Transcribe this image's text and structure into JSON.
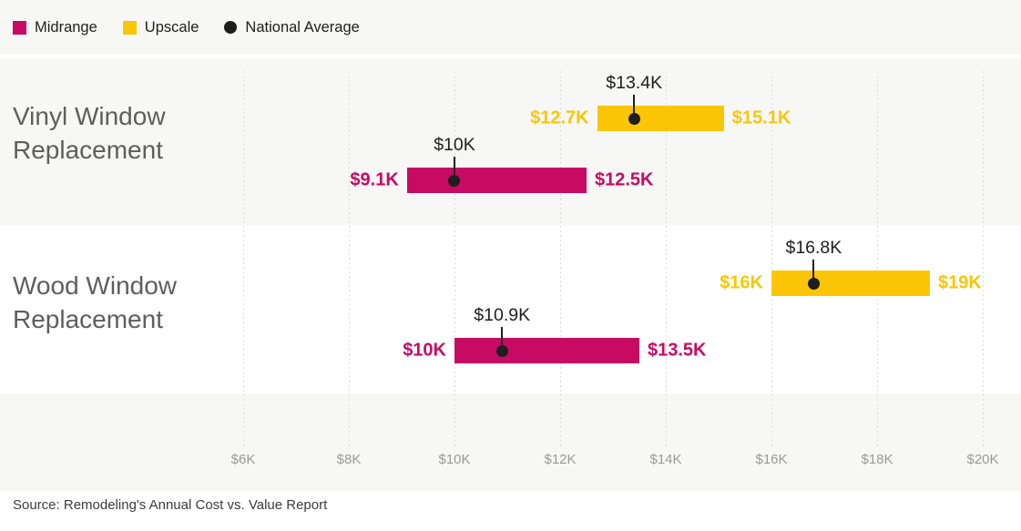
{
  "colors": {
    "midrange": "#c70a64",
    "upscale": "#fac606",
    "average": "#1e1e1e",
    "band": "#f7f7f6",
    "grid": "#dbdbdb",
    "title_text": "#5e5e5e",
    "axis_text": "#9a9a9a"
  },
  "source": "Source: Remodeling's Annual Cost vs. Value Report",
  "chart_data": {
    "type": "bar",
    "orientation": "horizontal-range",
    "legend_position": "top-left",
    "grid": "vertical-dotted",
    "legend": [
      {
        "key": "midrange",
        "label": "Midrange"
      },
      {
        "key": "upscale",
        "label": "Upscale"
      },
      {
        "key": "average",
        "label": "National Average"
      }
    ],
    "axis": {
      "min": 6,
      "max": 20,
      "unit": "thousand USD",
      "ticks": [
        {
          "value": 6,
          "label": "$6K"
        },
        {
          "value": 8,
          "label": "$8K"
        },
        {
          "value": 10,
          "label": "$10K"
        },
        {
          "value": 12,
          "label": "$12K"
        },
        {
          "value": 14,
          "label": "$14K"
        },
        {
          "value": 16,
          "label": "$16K"
        },
        {
          "value": 18,
          "label": "$18K"
        },
        {
          "value": 20,
          "label": "$20K"
        }
      ]
    },
    "rows": [
      {
        "label": "Vinyl Window Replacement",
        "series": [
          {
            "name": "Upscale",
            "key": "upscale",
            "low": 12.7,
            "high": 15.1,
            "avg": 13.4,
            "low_label": "$12.7K",
            "high_label": "$15.1K",
            "avg_label": "$13.4K"
          },
          {
            "name": "Midrange",
            "key": "midrange",
            "low": 9.1,
            "high": 12.5,
            "avg": 10,
            "low_label": "$9.1K",
            "high_label": "$12.5K",
            "avg_label": "$10K"
          }
        ]
      },
      {
        "label": "Wood Window Replacement",
        "series": [
          {
            "name": "Upscale",
            "key": "upscale",
            "low": 16,
            "high": 19,
            "avg": 16.8,
            "low_label": "$16K",
            "high_label": "$19K",
            "avg_label": "$16.8K"
          },
          {
            "name": "Midrange",
            "key": "midrange",
            "low": 10,
            "high": 13.5,
            "avg": 10.9,
            "low_label": "$10K",
            "high_label": "$13.5K",
            "avg_label": "$10.9K"
          }
        ]
      }
    ]
  }
}
